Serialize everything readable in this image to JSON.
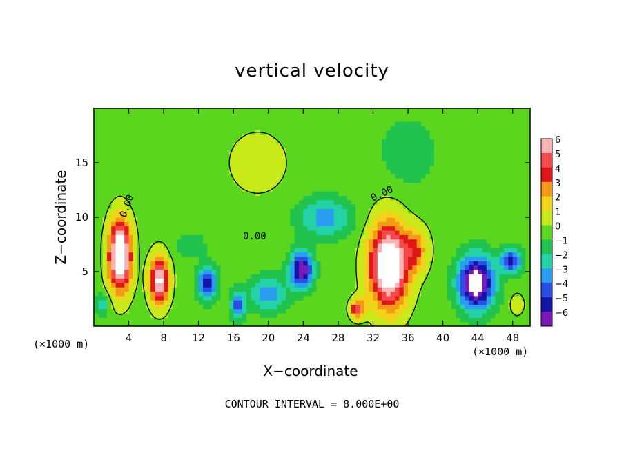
{
  "chart_data": {
    "type": "heatmap",
    "title": "vertical velocity",
    "xlabel": "X−coordinate",
    "ylabel": "Z−coordinate",
    "x_unit_label": "(×1000 m)",
    "xlim": [
      0,
      50
    ],
    "ylim": [
      0,
      20
    ],
    "x_ticks": [
      "4",
      "8",
      "12",
      "16",
      "20",
      "24",
      "28",
      "32",
      "36",
      "40",
      "44",
      "48"
    ],
    "y_ticks": [
      "5",
      "10",
      "15"
    ],
    "colorbar": {
      "min": -6,
      "max": 6,
      "labels": [
        "6",
        "5",
        "4",
        "3",
        "2",
        "1",
        "0",
        "−1",
        "−2",
        "−3",
        "−4",
        "−5",
        "−6"
      ],
      "colors": [
        "#f8b4b4",
        "#f24a4a",
        "#e01818",
        "#f59a18",
        "#f2d21a",
        "#c8ea1a",
        "#5ad61e",
        "#21c24d",
        "#23d2a6",
        "#2b9df0",
        "#2a4ee6",
        "#1414a8",
        "#7a1ab8"
      ]
    },
    "contour_interval_text": "CONTOUR INTERVAL = 8.000E+00",
    "contour_labels": [
      "0.00",
      "0.00",
      "0.00"
    ],
    "features": [
      {
        "x": 3.0,
        "z": 6.5,
        "w": -0.0,
        "sx": 1.3,
        "sz": 3.2,
        "amp": 9
      },
      {
        "x": 7.5,
        "z": 4.2,
        "sx": 1.1,
        "sz": 2.2,
        "amp": 7
      },
      {
        "x": 33.8,
        "z": 5.6,
        "sx": 2.2,
        "sz": 3.8,
        "amp": 9
      },
      {
        "x": 30.2,
        "z": 1.6,
        "sx": 0.8,
        "sz": 0.9,
        "amp": 5
      },
      {
        "x": 37.0,
        "z": 7.0,
        "sx": 1.4,
        "sz": 2.0,
        "amp": 3
      },
      {
        "x": 18.8,
        "z": 15.0,
        "sx": 3.5,
        "sz": 3.0,
        "amp": 1.2
      },
      {
        "x": 13.0,
        "z": 4.0,
        "sx": 1.0,
        "sz": 1.6,
        "amp": -5.5
      },
      {
        "x": 16.5,
        "z": 2.0,
        "sx": 0.8,
        "sz": 1.3,
        "amp": -4
      },
      {
        "x": 23.8,
        "z": 5.2,
        "sx": 1.3,
        "sz": 1.6,
        "amp": -6.5
      },
      {
        "x": 20.0,
        "z": 3.0,
        "sx": 2.2,
        "sz": 1.6,
        "amp": -3
      },
      {
        "x": 26.5,
        "z": 10.0,
        "sx": 3.0,
        "sz": 1.8,
        "amp": -3
      },
      {
        "x": 43.8,
        "z": 4.0,
        "sx": 2.0,
        "sz": 2.4,
        "amp": -8
      },
      {
        "x": 47.8,
        "z": 6.0,
        "sx": 1.2,
        "sz": 1.1,
        "amp": -5
      },
      {
        "x": 1.0,
        "z": 2.0,
        "sx": 0.8,
        "sz": 1.0,
        "amp": -2
      },
      {
        "x": 36.0,
        "z": 16.0,
        "sx": 3.0,
        "sz": 3.0,
        "amp": -1.3
      },
      {
        "x": 11.0,
        "z": 7.5,
        "sx": 1.6,
        "sz": 1.0,
        "amp": -1.5
      },
      {
        "x": 48.5,
        "z": 2.0,
        "sx": 0.8,
        "sz": 1.0,
        "amp": 1.5
      }
    ]
  }
}
